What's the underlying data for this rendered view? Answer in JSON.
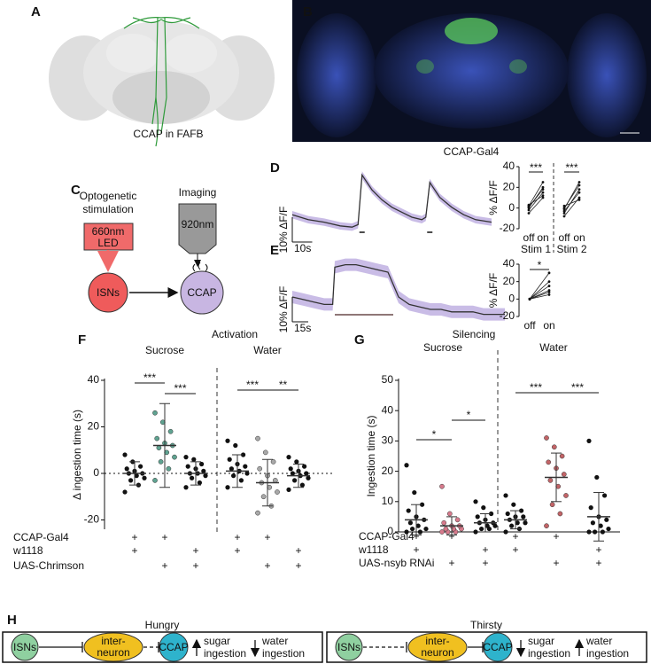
{
  "A": {
    "letter": "A",
    "caption": "CCAP in FAFB"
  },
  "B": {
    "letter": "B",
    "caption": "CCAP-Gal4"
  },
  "C": {
    "letter": "C",
    "stimulation": [
      "Optogenetic",
      "stimulation"
    ],
    "led": [
      "660nm",
      "LED"
    ],
    "imaging": "Imaging",
    "wavelength": "920nm",
    "source": "ISNs",
    "target": "CCAP"
  },
  "D": {
    "letter": "D",
    "trace": {
      "time": [
        0,
        8,
        16,
        24,
        30,
        33,
        35,
        40,
        45,
        50,
        55,
        60,
        65,
        67,
        69,
        74,
        80,
        86,
        92,
        100
      ],
      "dff": [
        1,
        -1,
        -2,
        -3.5,
        -4,
        -3,
        17,
        11,
        7,
        4,
        2,
        0,
        -1,
        0,
        14,
        8,
        4,
        1,
        -1,
        -2
      ],
      "sem": 1.5,
      "stim_times": [
        35,
        69
      ],
      "color": "#333333",
      "band_color": "#a58fd6",
      "scale_bar": {
        "dff": 10,
        "dff_label": "10% ΔF/F",
        "time": 10,
        "time_label": "10s"
      }
    },
    "inset": {
      "ylabel": "% ΔF/F",
      "ylim": [
        -20,
        40
      ],
      "yticks": [
        -20,
        0,
        20,
        40
      ],
      "groups": [
        {
          "name": "Stim 1",
          "conditions": [
            "off",
            "on"
          ],
          "significance": "***",
          "pairs": [
            [
              -2,
              15
            ],
            [
              0,
              20
            ],
            [
              2,
              25
            ],
            [
              -5,
              10
            ],
            [
              1,
              18
            ],
            [
              3,
              12
            ]
          ]
        },
        {
          "name": "Stim 2",
          "conditions": [
            "off",
            "on"
          ],
          "significance": "***",
          "pairs": [
            [
              -8,
              10
            ],
            [
              -3,
              15
            ],
            [
              0,
              22
            ],
            [
              2,
              8
            ],
            [
              -5,
              18
            ],
            [
              -1,
              25
            ]
          ]
        }
      ]
    }
  },
  "E": {
    "letter": "E",
    "trace": {
      "time": [
        0,
        10,
        20,
        30,
        38,
        40,
        50,
        60,
        70,
        80,
        90,
        95,
        100,
        110,
        120,
        130,
        140,
        150,
        160,
        170,
        180,
        190,
        200
      ],
      "dff": [
        0,
        -1,
        -2,
        -3,
        -3,
        12,
        13,
        13,
        12,
        11,
        10,
        5,
        0,
        -3,
        -4,
        -5,
        -5,
        -6,
        -6,
        -6,
        -7,
        -7,
        -7
      ],
      "sem": 2.5,
      "stim": [
        40,
        95
      ],
      "color": "#333333",
      "band_color": "#a58fd6",
      "scale_bar": {
        "dff": 10,
        "dff_label": "10% ΔF/F",
        "time": 15,
        "time_label": "15s"
      }
    },
    "inset": {
      "ylabel": "% ΔF/F",
      "ylim": [
        -20,
        40
      ],
      "yticks": [
        -20,
        0,
        20,
        40
      ],
      "groups": [
        {
          "conditions": [
            "off",
            "on"
          ],
          "significance": "*",
          "pairs": [
            [
              0,
              5
            ],
            [
              0,
              10
            ],
            [
              0,
              20
            ],
            [
              0,
              30
            ],
            [
              0,
              15
            ],
            [
              0,
              8
            ]
          ]
        }
      ]
    }
  },
  "F": {
    "letter": "F",
    "title": "Activation",
    "groups": [
      "Sucrose",
      "Water"
    ],
    "ylabel": "Δ ingestion time (s)",
    "ylim": [
      -24,
      40
    ],
    "yticks": [
      -20,
      0,
      20,
      40
    ],
    "zero_line": true,
    "conditions": [
      {
        "mean": 0,
        "sd": 5,
        "color": "#111111",
        "points": [
          -8,
          -5,
          -3,
          -2,
          -1,
          0,
          0,
          1,
          2,
          3,
          5,
          8
        ]
      },
      {
        "mean": 12,
        "sd": 18,
        "color": "#5fa391",
        "points": [
          -3,
          2,
          5,
          7,
          9,
          11,
          12,
          13,
          15,
          18,
          22,
          26
        ]
      },
      {
        "mean": 0,
        "sd": 5,
        "color": "#111111",
        "points": [
          -6,
          -4,
          -2,
          -1,
          0,
          0,
          1,
          2,
          3,
          4,
          6,
          7
        ]
      },
      {
        "mean": 1,
        "sd": 7,
        "color": "#111111",
        "points": [
          -6,
          -3,
          -1,
          0,
          1,
          2,
          3,
          4,
          6,
          8,
          12,
          14
        ]
      },
      {
        "mean": -4,
        "sd": 10,
        "color": "#a8a8a8",
        "points": [
          -17,
          -14,
          -10,
          -8,
          -6,
          -4,
          -3,
          -1,
          2,
          5,
          9,
          15
        ]
      },
      {
        "mean": -1,
        "sd": 5,
        "color": "#111111",
        "points": [
          -7,
          -5,
          -3,
          -2,
          -1,
          0,
          0,
          1,
          2,
          3,
          5,
          7
        ]
      }
    ],
    "significance": [
      {
        "pair": [
          0,
          1
        ],
        "label": "***"
      },
      {
        "pair": [
          1,
          2
        ],
        "label": "***"
      },
      {
        "pair": [
          3,
          4
        ],
        "label": "***"
      },
      {
        "pair": [
          4,
          5
        ],
        "label": "**"
      }
    ],
    "genotype": [
      {
        "name": "CCAP-Gal4",
        "signs": [
          "+",
          "+",
          null,
          "+",
          "+",
          null
        ]
      },
      {
        "name": "w1118",
        "signs": [
          "+",
          null,
          "+",
          "+",
          null,
          "+"
        ]
      },
      {
        "name": "UAS-Chrimson",
        "signs": [
          null,
          "+",
          "+",
          null,
          "+",
          "+"
        ]
      }
    ]
  },
  "G": {
    "letter": "G",
    "title": "Silencing",
    "groups": [
      "Sucrose",
      "Water"
    ],
    "ylabel": "Ingestion time (s)",
    "ylim": [
      0,
      50
    ],
    "yticks": [
      0,
      10,
      20,
      30,
      40,
      50
    ],
    "zero_line": false,
    "conditions": [
      {
        "mean": 4,
        "sd": 5,
        "color": "#111111",
        "points": [
          0,
          0,
          1,
          1,
          2,
          3,
          4,
          5,
          7,
          9,
          13,
          22
        ]
      },
      {
        "mean": 2,
        "sd": 3,
        "color": "#d77a8c",
        "points": [
          0,
          0,
          0,
          1,
          1,
          1,
          2,
          2,
          3,
          4,
          6,
          15
        ]
      },
      {
        "mean": 3,
        "sd": 3,
        "color": "#111111",
        "points": [
          0,
          1,
          1,
          2,
          2,
          3,
          3,
          4,
          5,
          6,
          8,
          10
        ]
      },
      {
        "mean": 4,
        "sd": 3,
        "color": "#111111",
        "points": [
          0,
          1,
          2,
          3,
          3,
          4,
          5,
          5,
          6,
          7,
          9,
          12
        ]
      },
      {
        "mean": 18,
        "sd": 8,
        "color": "#c26467",
        "points": [
          2,
          6,
          9,
          12,
          15,
          17,
          19,
          21,
          23,
          25,
          28,
          31
        ]
      },
      {
        "mean": 5,
        "sd": 8,
        "color": "#111111",
        "points": [
          0,
          0,
          0,
          1,
          2,
          3,
          4,
          5,
          8,
          12,
          18,
          30
        ]
      }
    ],
    "significance": [
      {
        "pair": [
          0,
          1
        ],
        "label": "*"
      },
      {
        "pair": [
          1,
          2
        ],
        "label": "*"
      },
      {
        "pair": [
          3,
          4
        ],
        "label": "***"
      },
      {
        "pair": [
          4,
          5
        ],
        "label": "***"
      }
    ],
    "genotype": [
      {
        "name": "CCAP-Gal4",
        "signs": [
          "+",
          "+",
          null,
          "+",
          "+",
          null
        ]
      },
      {
        "name": "w1118",
        "signs": [
          "+",
          null,
          "+",
          "+",
          null,
          "+"
        ]
      },
      {
        "name": "UAS-nsyb RNAi",
        "signs": [
          null,
          "+",
          "+",
          null,
          "+",
          "+"
        ]
      }
    ]
  },
  "H": {
    "letter": "H",
    "boxes": [
      {
        "title": "Hungry",
        "nodes": [
          "ISNs",
          [
            "inter-",
            "neuron"
          ],
          "CCAP"
        ],
        "node_colors": [
          "#8fd0a0",
          "#f0c020",
          "#2eb3cc"
        ],
        "links": [
          "solid",
          "dashed"
        ],
        "effects": [
          {
            "text": [
              "sugar",
              "ingestion"
            ],
            "arrow": "up"
          },
          {
            "text": [
              "water",
              "ingestion"
            ],
            "arrow": "down"
          }
        ]
      },
      {
        "title": "Thirsty",
        "nodes": [
          "ISNs",
          [
            "inter-",
            "neuron"
          ],
          "CCAP"
        ],
        "node_colors": [
          "#8fd0a0",
          "#f0c020",
          "#2eb3cc"
        ],
        "links": [
          "dashed",
          "solid"
        ],
        "effects": [
          {
            "text": [
              "sugar",
              "ingestion"
            ],
            "arrow": "down"
          },
          {
            "text": [
              "water",
              "ingestion"
            ],
            "arrow": "up"
          }
        ]
      }
    ]
  }
}
